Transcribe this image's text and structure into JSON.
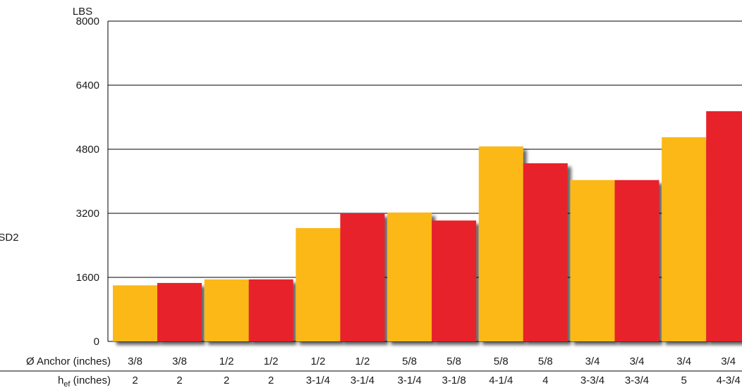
{
  "chart_data": {
    "type": "bar",
    "y_unit": "LBS",
    "side_label": "SD2",
    "ylim": [
      0,
      8000
    ],
    "yticks": [
      0,
      1600,
      3200,
      4800,
      6400,
      8000
    ],
    "grid": true,
    "row_labels": {
      "anchor": "Ø Anchor (inches)",
      "hef_main": "h",
      "hef_sub": "ef",
      "hef_rest": " (inches)"
    },
    "groups": [
      {
        "bars": [
          {
            "anchor": "3/8",
            "hef": "2",
            "value": 1400,
            "color": "#FBB818"
          },
          {
            "anchor": "3/8",
            "hef": "2",
            "value": 1460,
            "color": "#E8202A"
          }
        ]
      },
      {
        "bars": [
          {
            "anchor": "1/2",
            "hef": "2",
            "value": 1550,
            "color": "#FBB818"
          },
          {
            "anchor": "1/2",
            "hef": "2",
            "value": 1550,
            "color": "#E8202A"
          }
        ]
      },
      {
        "bars": [
          {
            "anchor": "1/2",
            "hef": "3-1/4",
            "value": 2830,
            "color": "#FBB818"
          },
          {
            "anchor": "1/2",
            "hef": "3-1/4",
            "value": 3200,
            "color": "#E8202A"
          }
        ]
      },
      {
        "bars": [
          {
            "anchor": "5/8",
            "hef": "3-1/4",
            "value": 3220,
            "color": "#FBB818"
          },
          {
            "anchor": "5/8",
            "hef": "3-1/8",
            "value": 3020,
            "color": "#E8202A"
          }
        ]
      },
      {
        "bars": [
          {
            "anchor": "5/8",
            "hef": "4-1/4",
            "value": 4870,
            "color": "#FBB818"
          },
          {
            "anchor": "5/8",
            "hef": "4",
            "value": 4450,
            "color": "#E8202A"
          }
        ]
      },
      {
        "bars": [
          {
            "anchor": "3/4",
            "hef": "3-3/4",
            "value": 4030,
            "color": "#FBB818"
          },
          {
            "anchor": "3/4",
            "hef": "3-3/4",
            "value": 4030,
            "color": "#E8202A"
          }
        ]
      },
      {
        "bars": [
          {
            "anchor": "3/4",
            "hef": "5",
            "value": 5100,
            "color": "#FBB818"
          },
          {
            "anchor": "3/4",
            "hef": "4-3/4",
            "value": 5750,
            "color": "#E8202A"
          }
        ]
      }
    ]
  }
}
